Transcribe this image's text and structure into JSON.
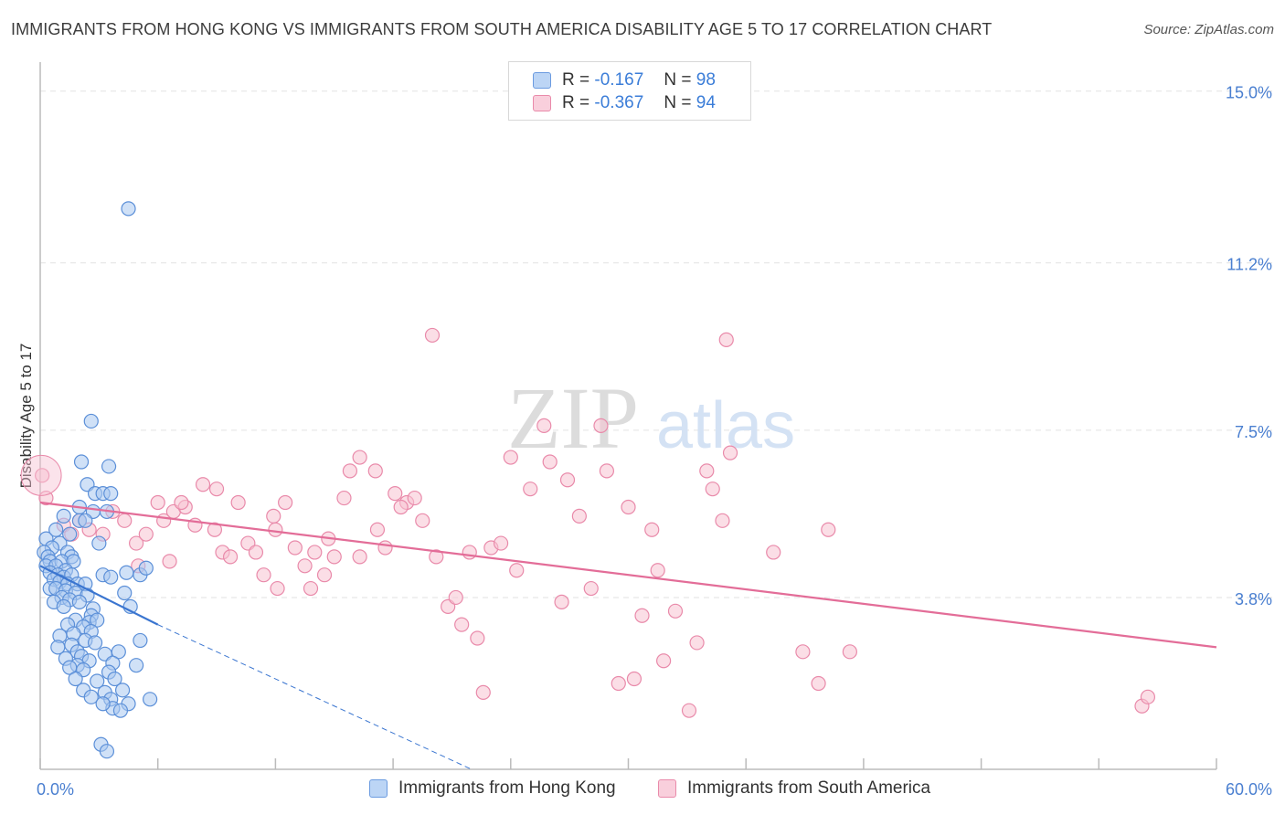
{
  "title": "IMMIGRANTS FROM HONG KONG VS IMMIGRANTS FROM SOUTH AMERICA DISABILITY AGE 5 TO 17 CORRELATION CHART",
  "source": "Source: ZipAtlas.com",
  "watermark": {
    "zip": "ZIP",
    "atlas": "atlas"
  },
  "legend": {
    "rows": [
      {
        "r_label": "R =",
        "r_value": "-0.167",
        "n_label": "N =",
        "n_value": "98"
      },
      {
        "r_label": "R =",
        "r_value": "-0.367",
        "n_label": "N =",
        "n_value": "94"
      }
    ]
  },
  "colors": {
    "blue_fill": "#a9c8f0",
    "blue_stroke": "#5b8fd8",
    "blue_line": "#3a75d0",
    "pink_fill": "#f7c2d2",
    "pink_stroke": "#e98aaa",
    "pink_line": "#e36d98",
    "grid": "#e2e2e2",
    "tick_text": "#4a7fd0"
  },
  "chart_data": {
    "type": "scatter",
    "title": "IMMIGRANTS FROM HONG KONG VS IMMIGRANTS FROM SOUTH AMERICA DISABILITY AGE 5 TO 17 CORRELATION CHART",
    "xlabel": "",
    "ylabel": "Disability Age 5 to 17",
    "xlim": [
      0,
      60
    ],
    "ylim": [
      0,
      15.6
    ],
    "x_tick_labels": [
      "0.0%",
      "60.0%"
    ],
    "y_ticks": [
      3.8,
      7.5,
      11.2,
      15.0
    ],
    "y_tick_labels": [
      "3.8%",
      "7.5%",
      "11.2%",
      "15.0%"
    ],
    "grid": true,
    "legend_position": "bottom",
    "series": [
      {
        "name": "Immigrants from Hong Kong",
        "color": "#a9c8f0",
        "trend": {
          "x0": 0,
          "y0": 4.5,
          "x1": 6,
          "y1": 3.2,
          "dashed_to": {
            "x": 22,
            "y": 0
          }
        },
        "points": [
          [
            4.5,
            12.4
          ],
          [
            2.6,
            7.7
          ],
          [
            2.1,
            6.8
          ],
          [
            3.5,
            6.7
          ],
          [
            2.4,
            6.3
          ],
          [
            2.8,
            6.1
          ],
          [
            3.2,
            6.1
          ],
          [
            3.6,
            6.1
          ],
          [
            2.0,
            5.8
          ],
          [
            2.7,
            5.7
          ],
          [
            3.4,
            5.7
          ],
          [
            1.2,
            5.6
          ],
          [
            2.0,
            5.5
          ],
          [
            2.3,
            5.5
          ],
          [
            0.3,
            5.1
          ],
          [
            1.0,
            5.0
          ],
          [
            3.0,
            5.0
          ],
          [
            0.6,
            4.9
          ],
          [
            0.2,
            4.8
          ],
          [
            0.4,
            4.7
          ],
          [
            1.4,
            4.8
          ],
          [
            1.6,
            4.7
          ],
          [
            0.5,
            4.6
          ],
          [
            1.1,
            4.6
          ],
          [
            1.7,
            4.6
          ],
          [
            0.3,
            4.5
          ],
          [
            0.8,
            4.5
          ],
          [
            1.3,
            4.4
          ],
          [
            0.5,
            4.35
          ],
          [
            0.9,
            4.3
          ],
          [
            1.2,
            4.25
          ],
          [
            1.6,
            4.3
          ],
          [
            3.2,
            4.3
          ],
          [
            3.6,
            4.25
          ],
          [
            4.4,
            4.35
          ],
          [
            5.1,
            4.3
          ],
          [
            5.4,
            4.45
          ],
          [
            0.7,
            4.2
          ],
          [
            1.0,
            4.15
          ],
          [
            1.4,
            4.1
          ],
          [
            1.9,
            4.1
          ],
          [
            2.3,
            4.1
          ],
          [
            0.5,
            4.0
          ],
          [
            0.8,
            4.0
          ],
          [
            1.3,
            3.95
          ],
          [
            1.8,
            3.9
          ],
          [
            2.4,
            3.85
          ],
          [
            1.1,
            3.8
          ],
          [
            1.5,
            3.75
          ],
          [
            2.0,
            3.7
          ],
          [
            0.7,
            3.7
          ],
          [
            1.2,
            3.6
          ],
          [
            2.7,
            3.55
          ],
          [
            4.6,
            3.6
          ],
          [
            4.3,
            3.9
          ],
          [
            2.6,
            3.4
          ],
          [
            1.8,
            3.3
          ],
          [
            2.5,
            3.25
          ],
          [
            2.9,
            3.3
          ],
          [
            1.4,
            3.2
          ],
          [
            2.2,
            3.15
          ],
          [
            1.7,
            3.0
          ],
          [
            2.6,
            3.05
          ],
          [
            1.0,
            2.95
          ],
          [
            2.3,
            2.85
          ],
          [
            1.6,
            2.75
          ],
          [
            2.8,
            2.8
          ],
          [
            0.9,
            2.7
          ],
          [
            1.9,
            2.6
          ],
          [
            3.3,
            2.55
          ],
          [
            4.0,
            2.6
          ],
          [
            5.1,
            2.85
          ],
          [
            2.1,
            2.5
          ],
          [
            1.3,
            2.45
          ],
          [
            2.5,
            2.4
          ],
          [
            1.9,
            2.3
          ],
          [
            3.7,
            2.35
          ],
          [
            4.9,
            2.3
          ],
          [
            1.5,
            2.25
          ],
          [
            2.2,
            2.2
          ],
          [
            3.5,
            2.15
          ],
          [
            1.8,
            2.0
          ],
          [
            2.9,
            1.95
          ],
          [
            3.8,
            2.0
          ],
          [
            2.2,
            1.75
          ],
          [
            3.3,
            1.7
          ],
          [
            4.2,
            1.75
          ],
          [
            2.6,
            1.6
          ],
          [
            3.6,
            1.55
          ],
          [
            4.5,
            1.45
          ],
          [
            5.6,
            1.55
          ],
          [
            3.7,
            1.35
          ],
          [
            4.1,
            1.3
          ],
          [
            3.2,
            1.45
          ],
          [
            0.8,
            5.3
          ],
          [
            1.5,
            5.2
          ],
          [
            3.1,
            0.55
          ],
          [
            3.4,
            0.4
          ]
        ]
      },
      {
        "name": "Immigrants from South America",
        "color": "#f7c2d2",
        "trend": {
          "x0": 0,
          "y0": 5.9,
          "x1": 60,
          "y1": 2.7
        },
        "points": [
          [
            0.1,
            6.5
          ],
          [
            0.3,
            6.0
          ],
          [
            1.2,
            5.4
          ],
          [
            1.6,
            5.2
          ],
          [
            2.0,
            5.5
          ],
          [
            2.5,
            5.3
          ],
          [
            3.2,
            5.2
          ],
          [
            3.7,
            5.7
          ],
          [
            4.3,
            5.5
          ],
          [
            4.9,
            5.0
          ],
          [
            5.4,
            5.2
          ],
          [
            6.0,
            5.9
          ],
          [
            6.3,
            5.5
          ],
          [
            6.8,
            5.7
          ],
          [
            7.4,
            5.8
          ],
          [
            7.9,
            5.4
          ],
          [
            8.3,
            6.3
          ],
          [
            8.9,
            5.3
          ],
          [
            9.3,
            4.8
          ],
          [
            9.7,
            4.7
          ],
          [
            10.1,
            5.9
          ],
          [
            10.6,
            5.0
          ],
          [
            11.0,
            4.8
          ],
          [
            11.4,
            4.3
          ],
          [
            12.0,
            5.3
          ],
          [
            12.5,
            5.9
          ],
          [
            13.0,
            4.9
          ],
          [
            13.5,
            4.5
          ],
          [
            14.0,
            4.8
          ],
          [
            14.5,
            4.3
          ],
          [
            15.0,
            4.7
          ],
          [
            15.8,
            6.6
          ],
          [
            16.3,
            6.9
          ],
          [
            17.1,
            6.6
          ],
          [
            17.6,
            4.9
          ],
          [
            18.1,
            6.1
          ],
          [
            18.7,
            5.9
          ],
          [
            19.1,
            6.0
          ],
          [
            19.5,
            5.5
          ],
          [
            20.2,
            4.7
          ],
          [
            20.8,
            3.6
          ],
          [
            21.2,
            3.8
          ],
          [
            21.5,
            3.2
          ],
          [
            21.9,
            4.8
          ],
          [
            22.3,
            2.9
          ],
          [
            22.6,
            1.7
          ],
          [
            23.0,
            4.9
          ],
          [
            23.5,
            5.0
          ],
          [
            24.0,
            6.9
          ],
          [
            24.3,
            4.4
          ],
          [
            25.0,
            6.2
          ],
          [
            25.7,
            7.6
          ],
          [
            26.0,
            6.8
          ],
          [
            26.6,
            3.7
          ],
          [
            26.9,
            6.4
          ],
          [
            27.5,
            5.6
          ],
          [
            28.1,
            4.0
          ],
          [
            28.6,
            7.6
          ],
          [
            28.9,
            6.6
          ],
          [
            29.5,
            1.9
          ],
          [
            30.0,
            5.8
          ],
          [
            30.7,
            3.4
          ],
          [
            31.2,
            5.3
          ],
          [
            31.5,
            4.4
          ],
          [
            31.8,
            2.4
          ],
          [
            32.4,
            3.5
          ],
          [
            33.1,
            1.3
          ],
          [
            33.5,
            2.8
          ],
          [
            34.0,
            6.6
          ],
          [
            34.3,
            6.2
          ],
          [
            34.8,
            5.5
          ],
          [
            35.2,
            7.0
          ],
          [
            37.4,
            4.8
          ],
          [
            38.9,
            2.6
          ],
          [
            39.7,
            1.9
          ],
          [
            40.2,
            5.3
          ],
          [
            41.3,
            2.6
          ],
          [
            16.3,
            4.7
          ],
          [
            13.8,
            4.0
          ],
          [
            17.2,
            5.3
          ],
          [
            6.6,
            4.6
          ],
          [
            9.0,
            6.2
          ],
          [
            12.1,
            4.0
          ],
          [
            14.7,
            5.1
          ],
          [
            15.5,
            6.0
          ],
          [
            18.4,
            5.8
          ],
          [
            20.0,
            9.6
          ],
          [
            35.0,
            9.5
          ],
          [
            56.2,
            1.4
          ],
          [
            56.5,
            1.6
          ],
          [
            7.2,
            5.9
          ],
          [
            5.0,
            4.5
          ],
          [
            11.9,
            5.6
          ],
          [
            30.3,
            2.0
          ]
        ]
      }
    ]
  }
}
